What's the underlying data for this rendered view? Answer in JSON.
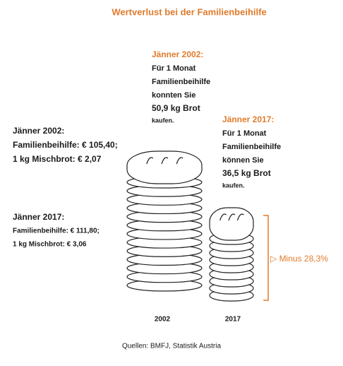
{
  "title": "Wertverlust bei der Familienbeihilfe",
  "block_2002": {
    "heading": "Jänner 2002:",
    "lines": [
      "Für 1 Monat",
      "Familienbeihilfe",
      "konnten Sie",
      "50,9 kg Brot"
    ],
    "note": "kaufen."
  },
  "block_2017": {
    "heading": "Jänner 2017:",
    "lines": [
      "Für 1 Monat",
      "Familienbeihilfe",
      "können Sie",
      "36,5 kg Brot"
    ],
    "note": "kaufen."
  },
  "prices_2002": {
    "heading": "Jänner 2002:",
    "lines": [
      "Familienbeihilfe: € 105,40;",
      "1 kg Mischbrot: € 2,07"
    ]
  },
  "prices_2017": {
    "heading": "Jänner 2017:",
    "lines": [
      "Familienbeihilfe: € 111,80;",
      "1 kg Mischbrot: € 3,06"
    ]
  },
  "labels": [
    "2002",
    "2017"
  ],
  "change": "▷ Minus 28,3%",
  "source": "Quellen: BMFJ,  Statistik Austria"
}
